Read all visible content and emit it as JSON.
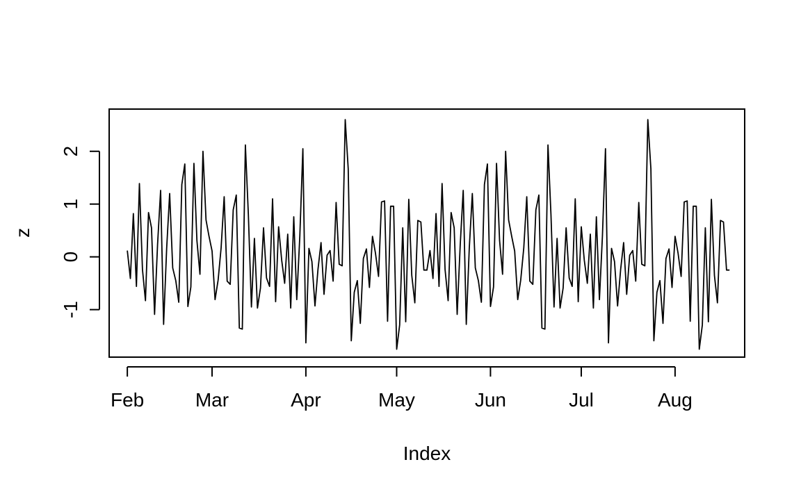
{
  "chart_data": {
    "type": "line",
    "xlabel": "Index",
    "ylabel": "z",
    "ylim": [
      -1.9,
      2.8
    ],
    "xlim": [
      "2021-01-26",
      "2021-08-24"
    ],
    "x_ticks": [
      {
        "label": "Feb",
        "date": "2021-02-01"
      },
      {
        "label": "Mar",
        "date": "2021-03-01"
      },
      {
        "label": "Apr",
        "date": "2021-04-01"
      },
      {
        "label": "May",
        "date": "2021-05-01"
      },
      {
        "label": "Jun",
        "date": "2021-06-01"
      },
      {
        "label": "Jul",
        "date": "2021-07-01"
      },
      {
        "label": "Aug",
        "date": "2021-08-01"
      }
    ],
    "y_ticks": [
      -1,
      0,
      1,
      2
    ],
    "series": [
      {
        "start_date": "2021-02-01",
        "frequency": "daily",
        "line_color": "#000000",
        "values": [
          0.12,
          -0.41,
          0.82,
          -0.56,
          1.39,
          -0.24,
          -0.83,
          0.84,
          0.55,
          -1.09,
          0.23,
          1.26,
          -1.28,
          0.16,
          1.2,
          -0.21,
          -0.45,
          -0.86,
          1.37,
          1.76,
          -0.94,
          -0.57,
          1.77,
          0.31,
          -0.33,
          2.0,
          0.7,
          0.39,
          0.11,
          -0.81,
          -0.44,
          0.17,
          1.14,
          -0.46,
          -0.52,
          0.89,
          1.17,
          -1.35,
          -1.37,
          2.12,
          0.8,
          -0.95,
          0.35,
          -0.97,
          -0.59,
          0.55,
          -0.4,
          -0.56,
          1.1,
          -0.85,
          0.57,
          -0.06,
          -0.5,
          0.43,
          -0.97,
          0.76,
          -0.81,
          0.39,
          2.05,
          -1.63,
          0.16,
          -0.09,
          -0.93,
          -0.24,
          0.27,
          -0.71,
          0.03,
          0.12,
          -0.46,
          1.03,
          -0.14,
          -0.17,
          2.6,
          1.67,
          -1.59,
          -0.67,
          -0.45,
          -1.26,
          -0.03,
          0.15,
          -0.58,
          0.39,
          0.07,
          -0.37,
          1.04,
          1.06,
          -1.22,
          0.96,
          0.96,
          -1.75,
          -1.29,
          0.55,
          -1.23,
          1.09,
          -0.35,
          -0.87,
          0.69,
          0.66,
          -0.25,
          -0.25,
          0.12,
          -0.41,
          0.82,
          -0.56,
          1.39,
          -0.24,
          -0.83,
          0.84,
          0.55,
          -1.09,
          0.23,
          1.26,
          -1.28,
          0.16,
          1.2,
          -0.21,
          -0.45,
          -0.86,
          1.37,
          1.76,
          -0.94,
          -0.57,
          1.77,
          0.31,
          -0.33,
          2.0,
          0.7,
          0.39,
          0.11,
          -0.81,
          -0.44,
          0.17,
          1.14,
          -0.46,
          -0.52,
          0.89,
          1.17,
          -1.35,
          -1.37,
          2.12,
          0.8,
          -0.95,
          0.35,
          -0.97,
          -0.59,
          0.55,
          -0.4,
          -0.56,
          1.1,
          -0.85,
          0.57,
          -0.06,
          -0.5,
          0.43,
          -0.97,
          0.76,
          -0.81,
          0.39,
          2.05,
          -1.63,
          0.16,
          -0.09,
          -0.93,
          -0.24,
          0.27,
          -0.71,
          0.03,
          0.12,
          -0.46,
          1.03,
          -0.14,
          -0.17,
          2.6,
          1.67,
          -1.59,
          -0.67,
          -0.45,
          -1.26,
          -0.03,
          0.15,
          -0.58,
          0.39,
          0.07,
          -0.37,
          1.04,
          1.06,
          -1.22,
          0.96,
          0.96,
          -1.75,
          -1.29,
          0.55,
          -1.23,
          1.09,
          -0.35,
          -0.87,
          0.69,
          0.66,
          -0.25,
          -0.25
        ]
      }
    ]
  }
}
